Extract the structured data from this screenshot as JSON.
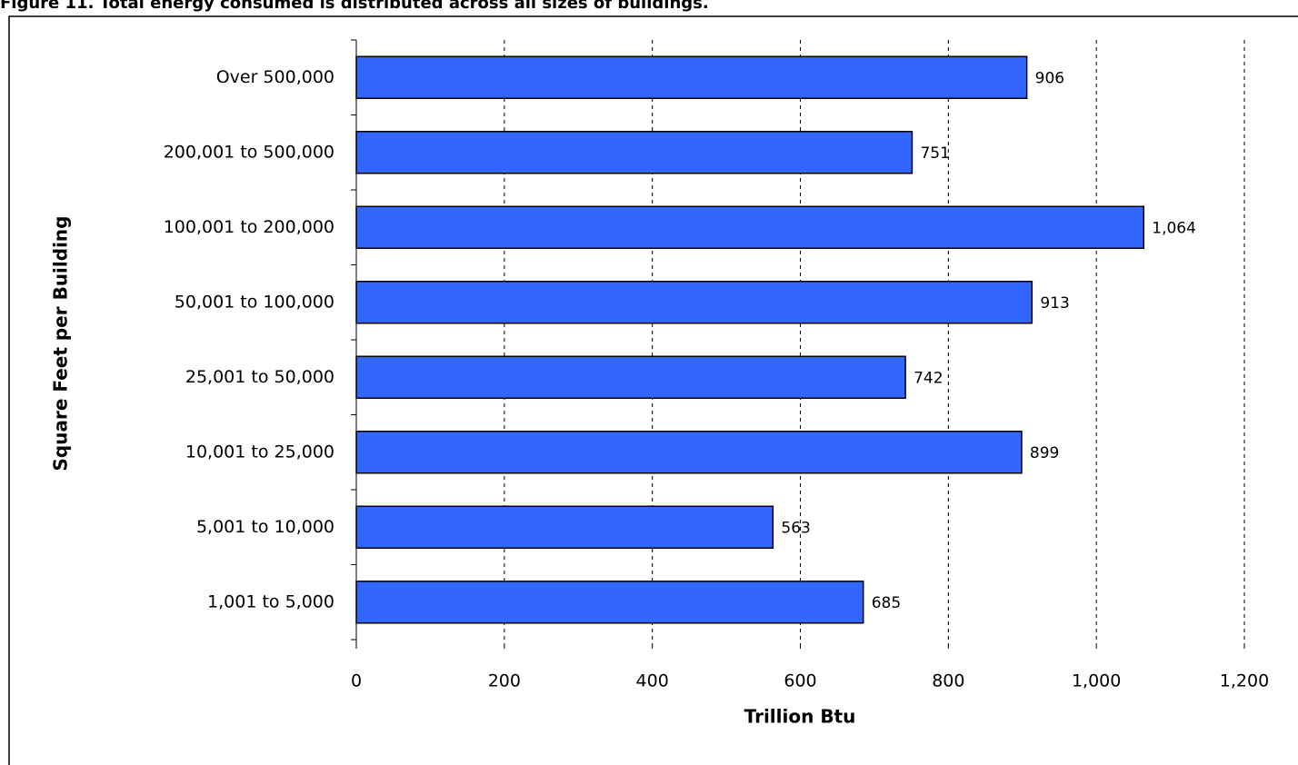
{
  "chart_data": {
    "type": "bar",
    "orientation": "horizontal",
    "title": "Figure 11. Total energy consumed is distributed across all sizes of buildings.",
    "x_label": "Trillion Btu",
    "y_label": "Square Feet per Building",
    "categories": [
      "Over 500,000",
      "200,001 to 500,000",
      "100,001 to 200,000",
      "50,001 to 100,000",
      "25,001 to 50,000",
      "10,001 to 25,000",
      "5,001 to 10,000",
      "1,001 to 5,000"
    ],
    "values": [
      906,
      751,
      1064,
      913,
      742,
      899,
      563,
      685
    ],
    "value_labels": [
      "906",
      "751",
      "1,064",
      "913",
      "742",
      "899",
      "563",
      "685"
    ],
    "color": "#3366ff",
    "xlim": [
      0,
      1200
    ],
    "xticks": [
      0,
      200,
      400,
      600,
      800,
      {
        "value": 1000,
        "label": "1,000"
      },
      {
        "value": 1200,
        "label": "1,200"
      }
    ],
    "grid": true
  }
}
